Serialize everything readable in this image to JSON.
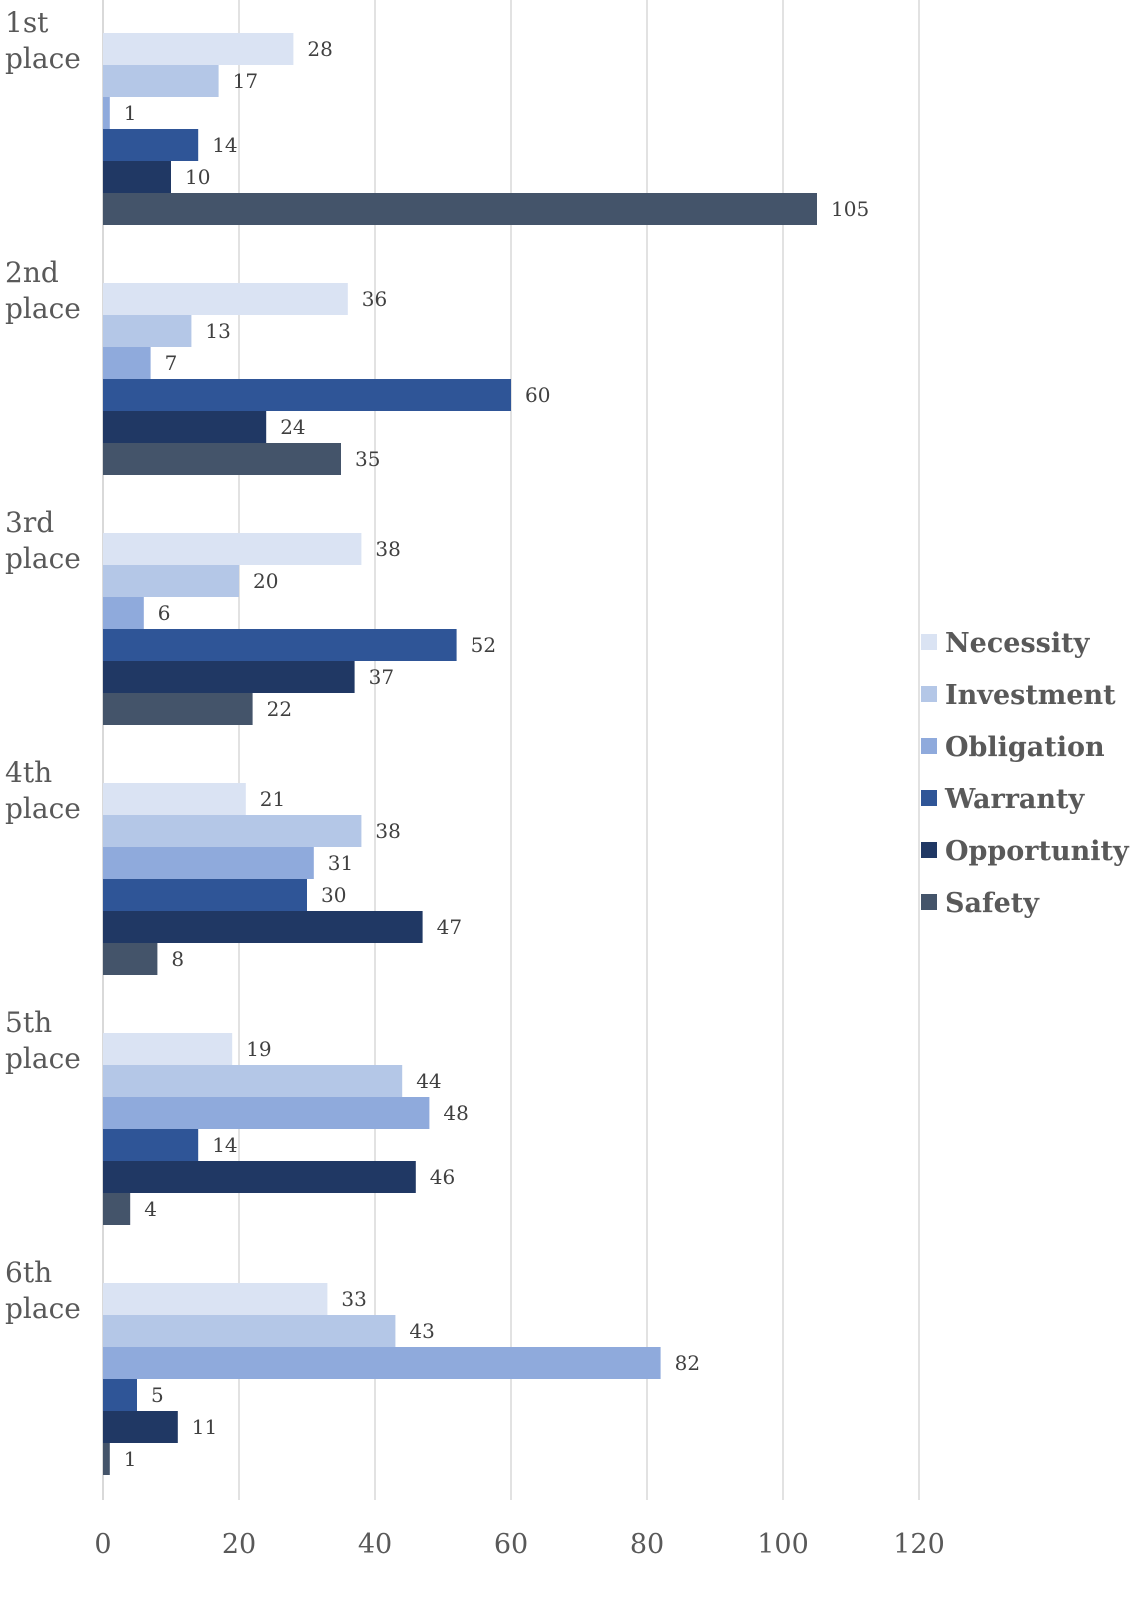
{
  "chart_data": {
    "type": "bar",
    "orientation": "horizontal",
    "title": "",
    "xlabel": "",
    "ylabel": "",
    "xlim": [
      0,
      120
    ],
    "x_ticks": [
      0,
      20,
      40,
      60,
      80,
      100,
      120
    ],
    "grid": "vertical",
    "legend_position": "right",
    "categories": [
      [
        "1st",
        "place"
      ],
      [
        "2nd",
        "place"
      ],
      [
        "3rd",
        "place"
      ],
      [
        "4th",
        "place"
      ],
      [
        "5th",
        "place"
      ],
      [
        "6th",
        "place"
      ]
    ],
    "series": [
      {
        "name": "Necessity",
        "color": "#dae3f3",
        "values": [
          28,
          36,
          38,
          21,
          19,
          33
        ]
      },
      {
        "name": "Investment",
        "color": "#b4c7e7",
        "values": [
          17,
          13,
          20,
          38,
          44,
          43
        ]
      },
      {
        "name": "Obligation",
        "color": "#8faadc",
        "values": [
          1,
          7,
          6,
          31,
          48,
          82
        ]
      },
      {
        "name": "Warranty",
        "color": "#2f5597",
        "values": [
          14,
          60,
          52,
          30,
          14,
          5
        ]
      },
      {
        "name": "Opportunity",
        "color": "#203864",
        "values": [
          10,
          24,
          37,
          47,
          46,
          11
        ]
      },
      {
        "name": "Safety",
        "color": "#44546a",
        "values": [
          105,
          35,
          22,
          8,
          4,
          1
        ]
      }
    ]
  }
}
